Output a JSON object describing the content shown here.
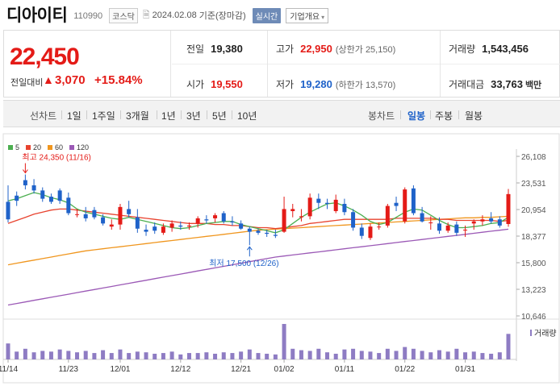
{
  "header": {
    "name": "디아이티",
    "code": "110990",
    "market": "코스닥",
    "date": "2024.02.08",
    "basis": "기준(장마감)",
    "realtime": "실시간",
    "company_info": "기업개요"
  },
  "price": {
    "current": "22,450",
    "change_label": "전일대비",
    "change": "3,070",
    "change_pct": "+15.84%"
  },
  "stats": {
    "prev_label": "전일",
    "prev": "19,380",
    "high_label": "고가",
    "high": "22,950",
    "upper_limit": "(상한가 25,150)",
    "volume_label": "거래량",
    "volume": "1,543,456",
    "open_label": "시가",
    "open": "19,550",
    "low_label": "저가",
    "low": "19,280",
    "lower_limit": "(하한가 13,570)",
    "amount_label": "거래대금",
    "amount": "33,763",
    "amount_unit": "백만"
  },
  "tabs": {
    "line_chart": "선차트",
    "line_periods": [
      "1일",
      "1주일",
      "3개월",
      "1년",
      "3년",
      "5년",
      "10년"
    ],
    "candle_chart": "봉차트",
    "candle_periods": [
      "일봉",
      "주봉",
      "월봉"
    ],
    "candle_active": "일봉"
  },
  "colors": {
    "up": "#e41b17",
    "down": "#1f62c9",
    "ma5": "#4caf50",
    "ma20": "#e8432f",
    "ma60": "#f0961e",
    "ma120": "#9b59b6",
    "volume": "#8e7cc3"
  },
  "chart_data": {
    "type": "candlestick",
    "legend": [
      "5",
      "20",
      "60",
      "120"
    ],
    "y_ticks": [
      "26,108",
      "23,531",
      "20,954",
      "18,377",
      "15,800",
      "13,223",
      "10,646"
    ],
    "ylim": [
      10646,
      26108
    ],
    "volume_label": "거래량",
    "x_labels": [
      {
        "i": 0,
        "label": "11/14"
      },
      {
        "i": 7,
        "label": "11/23"
      },
      {
        "i": 13,
        "label": "12/01"
      },
      {
        "i": 20,
        "label": "12/12"
      },
      {
        "i": 27,
        "label": "12/21"
      },
      {
        "i": 32,
        "label": "01/02"
      },
      {
        "i": 39,
        "label": "01/11"
      },
      {
        "i": 46,
        "label": "01/22"
      },
      {
        "i": 53,
        "label": "01/31"
      }
    ],
    "annotations": [
      {
        "text": "최고 24,350 (11/16)",
        "i": 2,
        "value": 24350,
        "pos": "above"
      },
      {
        "text": "최저 17,500 (12/26)",
        "i": 28,
        "value": 17500,
        "pos": "below"
      }
    ],
    "candles": [
      {
        "o": 21700,
        "h": 23300,
        "l": 19700,
        "c": 20000
      },
      {
        "o": 22300,
        "h": 22700,
        "l": 21300,
        "c": 21800
      },
      {
        "o": 23800,
        "h": 24350,
        "l": 22900,
        "c": 23300
      },
      {
        "o": 23300,
        "h": 23900,
        "l": 22500,
        "c": 22800
      },
      {
        "o": 22800,
        "h": 23100,
        "l": 21700,
        "c": 22000
      },
      {
        "o": 22200,
        "h": 22500,
        "l": 21500,
        "c": 21700
      },
      {
        "o": 22800,
        "h": 23000,
        "l": 21500,
        "c": 21800
      },
      {
        "o": 22100,
        "h": 22600,
        "l": 20400,
        "c": 20600
      },
      {
        "o": 20500,
        "h": 21000,
        "l": 20200,
        "c": 20500
      },
      {
        "o": 20500,
        "h": 21200,
        "l": 19800,
        "c": 20100
      },
      {
        "o": 20900,
        "h": 21200,
        "l": 20000,
        "c": 20200
      },
      {
        "o": 20200,
        "h": 20500,
        "l": 19400,
        "c": 19600
      },
      {
        "o": 19300,
        "h": 20000,
        "l": 19000,
        "c": 19500
      },
      {
        "o": 19500,
        "h": 21500,
        "l": 19000,
        "c": 21200
      },
      {
        "o": 21000,
        "h": 21800,
        "l": 20200,
        "c": 20500
      },
      {
        "o": 20200,
        "h": 21000,
        "l": 18700,
        "c": 19100
      },
      {
        "o": 19000,
        "h": 19500,
        "l": 18400,
        "c": 18800
      },
      {
        "o": 19300,
        "h": 19700,
        "l": 18600,
        "c": 18900
      },
      {
        "o": 18700,
        "h": 19600,
        "l": 18500,
        "c": 19300
      },
      {
        "o": 19200,
        "h": 19900,
        "l": 18800,
        "c": 19600
      },
      {
        "o": 19400,
        "h": 19800,
        "l": 19000,
        "c": 19300
      },
      {
        "o": 19300,
        "h": 19700,
        "l": 19000,
        "c": 19400
      },
      {
        "o": 19600,
        "h": 20300,
        "l": 19200,
        "c": 20100
      },
      {
        "o": 20000,
        "h": 20400,
        "l": 19600,
        "c": 19900
      },
      {
        "o": 20100,
        "h": 20600,
        "l": 19700,
        "c": 20400
      },
      {
        "o": 20600,
        "h": 20800,
        "l": 19600,
        "c": 19800
      },
      {
        "o": 19800,
        "h": 20300,
        "l": 19400,
        "c": 19700
      },
      {
        "o": 19600,
        "h": 19900,
        "l": 19000,
        "c": 19100
      },
      {
        "o": 19100,
        "h": 19300,
        "l": 17500,
        "c": 18800
      },
      {
        "o": 18900,
        "h": 19100,
        "l": 18500,
        "c": 18700
      },
      {
        "o": 18700,
        "h": 19000,
        "l": 18300,
        "c": 18600
      },
      {
        "o": 18500,
        "h": 19000,
        "l": 18200,
        "c": 18400
      },
      {
        "o": 18800,
        "h": 22200,
        "l": 18700,
        "c": 21000
      },
      {
        "o": 20800,
        "h": 21500,
        "l": 20200,
        "c": 21000
      },
      {
        "o": 20200,
        "h": 21000,
        "l": 19800,
        "c": 20300
      },
      {
        "o": 20300,
        "h": 22500,
        "l": 20000,
        "c": 22100
      },
      {
        "o": 22000,
        "h": 22500,
        "l": 21000,
        "c": 21600
      },
      {
        "o": 21600,
        "h": 22000,
        "l": 21000,
        "c": 21500
      },
      {
        "o": 20800,
        "h": 22400,
        "l": 20600,
        "c": 21900
      },
      {
        "o": 21500,
        "h": 22000,
        "l": 20400,
        "c": 20700
      },
      {
        "o": 20700,
        "h": 21000,
        "l": 18900,
        "c": 19200
      },
      {
        "o": 19200,
        "h": 19600,
        "l": 18100,
        "c": 18400
      },
      {
        "o": 18200,
        "h": 19600,
        "l": 18000,
        "c": 19300
      },
      {
        "o": 19300,
        "h": 19700,
        "l": 19000,
        "c": 19300
      },
      {
        "o": 19400,
        "h": 21500,
        "l": 19200,
        "c": 21300
      },
      {
        "o": 21600,
        "h": 22200,
        "l": 20800,
        "c": 21300
      },
      {
        "o": 19800,
        "h": 23100,
        "l": 19600,
        "c": 22900
      },
      {
        "o": 23000,
        "h": 23300,
        "l": 20400,
        "c": 20600
      },
      {
        "o": 20600,
        "h": 21200,
        "l": 19700,
        "c": 19800
      },
      {
        "o": 19700,
        "h": 20300,
        "l": 19000,
        "c": 19700
      },
      {
        "o": 19600,
        "h": 20200,
        "l": 18600,
        "c": 18900
      },
      {
        "o": 18900,
        "h": 19700,
        "l": 18700,
        "c": 19400
      },
      {
        "o": 19500,
        "h": 19800,
        "l": 18400,
        "c": 18700
      },
      {
        "o": 19000,
        "h": 19400,
        "l": 18300,
        "c": 19000
      },
      {
        "o": 19600,
        "h": 20000,
        "l": 19000,
        "c": 19800
      },
      {
        "o": 19800,
        "h": 20400,
        "l": 19400,
        "c": 20000
      },
      {
        "o": 20100,
        "h": 20700,
        "l": 19600,
        "c": 19800
      },
      {
        "o": 20000,
        "h": 20300,
        "l": 19200,
        "c": 19400
      },
      {
        "o": 19550,
        "h": 22950,
        "l": 19280,
        "c": 22450
      }
    ],
    "volumes": [
      45,
      22,
      30,
      20,
      24,
      22,
      28,
      24,
      20,
      24,
      18,
      26,
      18,
      28,
      18,
      22,
      20,
      16,
      18,
      22,
      14,
      18,
      18,
      20,
      16,
      20,
      18,
      22,
      28,
      18,
      16,
      14,
      100,
      30,
      26,
      24,
      30,
      20,
      16,
      28,
      30,
      24,
      22,
      18,
      30,
      24,
      35,
      30,
      24,
      20,
      26,
      22,
      30,
      20,
      22,
      18,
      16,
      20,
      72
    ],
    "ma5": [
      21800,
      22000,
      22300,
      22600,
      22400,
      22100,
      21900,
      21600,
      21000,
      20700,
      20500,
      20300,
      20100,
      20000,
      20200,
      20000,
      19800,
      19600,
      19400,
      19200,
      19100,
      19200,
      19400,
      19600,
      19700,
      19800,
      19800,
      19500,
      19300,
      19100,
      18900,
      18700,
      19000,
      19600,
      20200,
      20700,
      21100,
      21500,
      21600,
      21300,
      20900,
      20400,
      19800,
      19500,
      19700,
      20200,
      20700,
      21000,
      20900,
      20400,
      19900,
      19500,
      19200,
      19200,
      19300,
      19400,
      19600,
      19700,
      20200
    ],
    "ma20": [
      19600,
      19900,
      20200,
      20500,
      20700,
      20900,
      21000,
      21000,
      20900,
      20800,
      20700,
      20600,
      20500,
      20400,
      20300,
      20200,
      20100,
      20000,
      19900,
      19800,
      19700,
      19600,
      19600,
      19600,
      19500,
      19500,
      19400,
      19400,
      19300,
      19200,
      19200,
      19100,
      19200,
      19300,
      19400,
      19600,
      19700,
      19800,
      19900,
      20000,
      20000,
      20000,
      20000,
      20000,
      20000,
      20100,
      20100,
      20100,
      20100,
      20100,
      20000,
      20000,
      19900,
      19900,
      19900,
      19900,
      19900,
      19800,
      19900
    ],
    "ma60": [
      15600,
      15750,
      15900,
      16050,
      16200,
      16350,
      16500,
      16650,
      16800,
      16950,
      17050,
      17150,
      17250,
      17350,
      17450,
      17550,
      17650,
      17750,
      17850,
      17950,
      18050,
      18150,
      18250,
      18350,
      18450,
      18550,
      18650,
      18750,
      18850,
      18950,
      19000,
      19050,
      19100,
      19150,
      19200,
      19250,
      19300,
      19350,
      19400,
      19450,
      19500,
      19550,
      19600,
      19650,
      19700,
      19750,
      19800,
      19850,
      19900,
      19950,
      20000,
      20050,
      20100,
      20150,
      20150,
      20200,
      20200,
      20250,
      20300
    ],
    "ma120": [
      11700,
      11850,
      12000,
      12150,
      12300,
      12450,
      12600,
      12750,
      12900,
      13050,
      13200,
      13350,
      13500,
      13650,
      13800,
      13950,
      14100,
      14250,
      14400,
      14550,
      14700,
      14850,
      15000,
      15150,
      15300,
      15450,
      15600,
      15750,
      15900,
      16050,
      16200,
      16350,
      16450,
      16550,
      16650,
      16750,
      16850,
      16950,
      17050,
      17150,
      17250,
      17350,
      17450,
      17550,
      17650,
      17750,
      17850,
      17950,
      18050,
      18150,
      18250,
      18350,
      18450,
      18550,
      18650,
      18750,
      18850,
      18950,
      19050
    ]
  }
}
